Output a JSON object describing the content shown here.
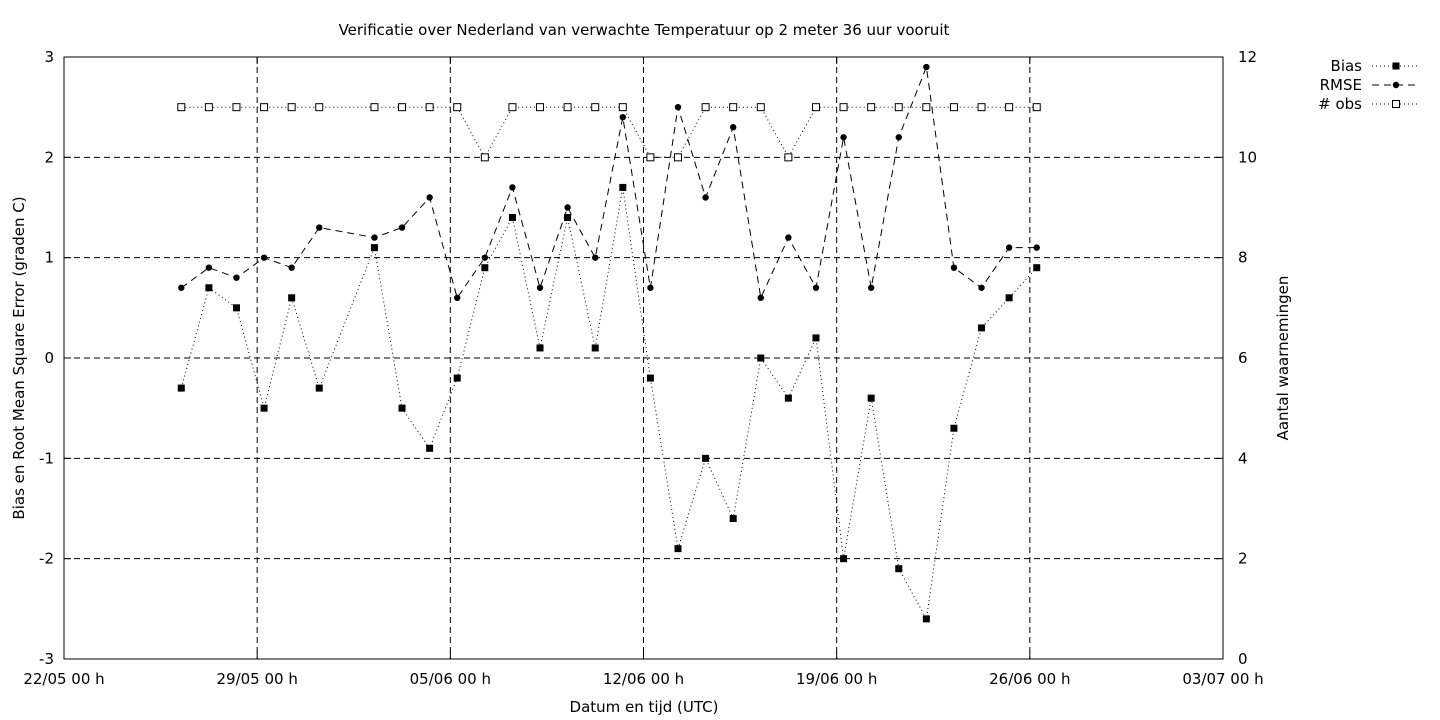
{
  "chart_data": {
    "type": "line",
    "title": "Verificatie over Nederland van verwachte Temperatuur op 2 meter 36 uur vooruit",
    "xlabel": "Datum en tijd (UTC)",
    "ylabel_left": "Bias en Root Mean Square Error (graden C)",
    "ylabel_right": "Aantal waarnemingen",
    "x_ticks": [
      "22/05 00 h",
      "29/05 00 h",
      "05/06 00 h",
      "12/06 00 h",
      "19/06 00 h",
      "26/06 00 h",
      "03/07 00 h"
    ],
    "xlim_days": [
      0,
      42
    ],
    "ylim_left": [
      -3,
      3
    ],
    "y_ticks_left": [
      "-3",
      "-2",
      "-1",
      "0",
      "1",
      "2",
      "3"
    ],
    "ylim_right": [
      0,
      12
    ],
    "y_ticks_right": [
      "0",
      "2",
      "4",
      "6",
      "8",
      "10",
      "12"
    ],
    "grid": true,
    "legend_position": "top-right, outside plot",
    "x_days": [
      4.25,
      5.25,
      6.25,
      7.25,
      8.25,
      9.25,
      10.25,
      11.25,
      12.25,
      13.25,
      14.25,
      15.25,
      16.25,
      17.25,
      18.25,
      19.25,
      20.25,
      21.25,
      22.25,
      23.25,
      24.25,
      25.25,
      26.25,
      27.25,
      28.25,
      29.25,
      30.25,
      31.25,
      32.25,
      33.25,
      34.25,
      35.25
    ],
    "series": [
      {
        "name": "Bias",
        "axis": "left",
        "marker": "filled-square",
        "dash": "1,3",
        "x_days": [
          4.25,
          5.25,
          6.25,
          7.25,
          8.25,
          9.25,
          11.25,
          12.25,
          13.25,
          14.25,
          15.25,
          16.25,
          17.25,
          18.25,
          19.25,
          20.25,
          21.25,
          22.25,
          23.25,
          24.25,
          25.25,
          26.25,
          27.25,
          28.25,
          29.25,
          30.25,
          31.25,
          32.25,
          33.25,
          34.25,
          35.25
        ],
        "values": [
          -0.3,
          0.7,
          0.5,
          -0.5,
          0.6,
          -0.3,
          1.1,
          -0.5,
          -0.9,
          -0.2,
          0.9,
          1.4,
          0.1,
          1.4,
          0.1,
          1.7,
          -0.2,
          -1.9,
          -1.0,
          -1.6,
          0.0,
          -0.4,
          0.2,
          -2.0,
          -0.4,
          -2.1,
          -2.6,
          -0.7,
          0.3,
          0.6,
          0.9
        ]
      },
      {
        "name": "RMSE",
        "axis": "left",
        "marker": "filled-circle",
        "dash": "7,5",
        "x_days": [
          4.25,
          5.25,
          6.25,
          7.25,
          8.25,
          9.25,
          11.25,
          12.25,
          13.25,
          14.25,
          15.25,
          16.25,
          17.25,
          18.25,
          19.25,
          20.25,
          21.25,
          22.25,
          23.25,
          24.25,
          25.25,
          26.25,
          27.25,
          28.25,
          29.25,
          30.25,
          31.25,
          32.25,
          33.25,
          34.25,
          35.25
        ],
        "values": [
          0.7,
          0.9,
          0.8,
          1.0,
          0.9,
          1.3,
          1.2,
          1.3,
          1.6,
          0.6,
          1.0,
          1.7,
          0.7,
          1.5,
          1.0,
          2.4,
          0.7,
          2.5,
          1.6,
          2.3,
          0.6,
          1.2,
          0.7,
          2.2,
          0.7,
          2.2,
          2.9,
          0.9,
          0.7,
          1.1,
          1.1
        ]
      },
      {
        "name": "# obs",
        "axis": "right",
        "marker": "open-square",
        "dash": "1,3",
        "x_days": [
          4.25,
          5.25,
          6.25,
          7.25,
          8.25,
          9.25,
          11.25,
          12.25,
          13.25,
          14.25,
          15.25,
          16.25,
          17.25,
          18.25,
          19.25,
          20.25,
          21.25,
          22.25,
          23.25,
          24.25,
          25.25,
          26.25,
          27.25,
          28.25,
          29.25,
          30.25,
          31.25,
          32.25,
          33.25,
          34.25,
          35.25
        ],
        "values": [
          11,
          11,
          11,
          11,
          11,
          11,
          11,
          11,
          11,
          11,
          10,
          11,
          11,
          11,
          11,
          11,
          10,
          10,
          11,
          11,
          11,
          10,
          11,
          11,
          11,
          11,
          11,
          11,
          11,
          11,
          11
        ]
      }
    ]
  }
}
